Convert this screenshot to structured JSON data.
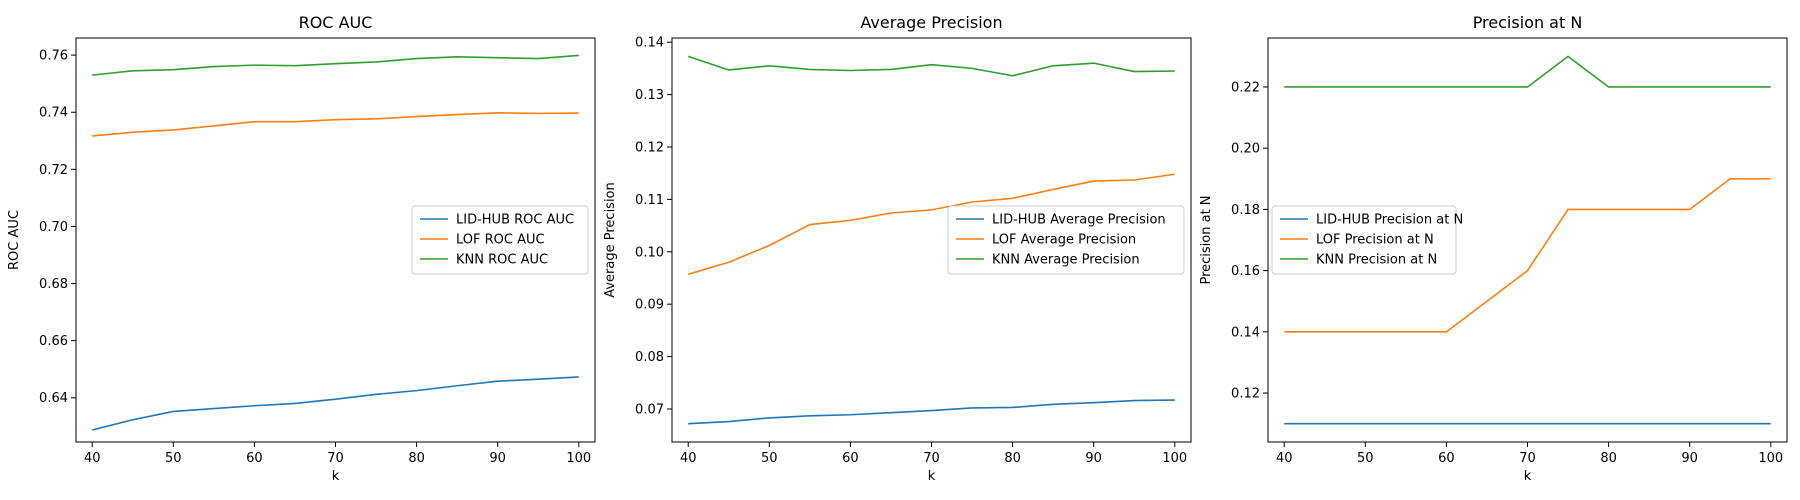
{
  "chart_data": [
    {
      "type": "line",
      "title": "ROC AUC",
      "xlabel": "k",
      "ylabel": "ROC AUC",
      "x": [
        40,
        45,
        50,
        55,
        60,
        65,
        70,
        75,
        80,
        85,
        90,
        95,
        100
      ],
      "xlim": [
        38,
        102
      ],
      "ylim": [
        0.6245,
        0.766
      ],
      "xticks": [
        40,
        50,
        60,
        70,
        80,
        90,
        100
      ],
      "yticks": [
        0.64,
        0.66,
        0.68,
        0.7,
        0.72,
        0.74,
        0.76
      ],
      "ytick_decimals": 2,
      "legend_position": "center-right",
      "grid": false,
      "series": [
        {
          "name": "LID-HUB ROC AUC",
          "color": "#1f77b4",
          "values": [
            0.6287,
            0.6323,
            0.6352,
            0.6362,
            0.6372,
            0.638,
            0.6395,
            0.6412,
            0.6425,
            0.6442,
            0.6458,
            0.6465,
            0.6473
          ]
        },
        {
          "name": "LOF ROC AUC",
          "color": "#ff7f0e",
          "values": [
            0.7317,
            0.733,
            0.7338,
            0.7352,
            0.7367,
            0.7367,
            0.7374,
            0.7377,
            0.7385,
            0.7392,
            0.7398,
            0.7396,
            0.7397
          ]
        },
        {
          "name": "KNN ROC AUC",
          "color": "#2ca02c",
          "values": [
            0.753,
            0.7545,
            0.7549,
            0.756,
            0.7565,
            0.7563,
            0.757,
            0.7576,
            0.7588,
            0.7594,
            0.7591,
            0.7588,
            0.7599
          ]
        }
      ]
    },
    {
      "type": "line",
      "title": "Average Precision",
      "xlabel": "k",
      "ylabel": "Average Precision",
      "x": [
        40,
        45,
        50,
        55,
        60,
        65,
        70,
        75,
        80,
        85,
        90,
        95,
        100
      ],
      "xlim": [
        38,
        102
      ],
      "ylim": [
        0.0637,
        0.1408
      ],
      "xticks": [
        40,
        50,
        60,
        70,
        80,
        90,
        100
      ],
      "yticks": [
        0.07,
        0.08,
        0.09,
        0.1,
        0.11,
        0.12,
        0.13,
        0.14
      ],
      "ytick_decimals": 2,
      "legend_position": "center-right",
      "grid": false,
      "series": [
        {
          "name": "LID-HUB Average Precision",
          "color": "#1f77b4",
          "values": [
            0.0672,
            0.0676,
            0.0683,
            0.0687,
            0.0689,
            0.0693,
            0.0697,
            0.0702,
            0.0703,
            0.0709,
            0.0712,
            0.0716,
            0.0717
          ]
        },
        {
          "name": "LOF Average Precision",
          "color": "#ff7f0e",
          "values": [
            0.0957,
            0.098,
            0.1012,
            0.1052,
            0.106,
            0.1074,
            0.108,
            0.1095,
            0.1102,
            0.1119,
            0.1135,
            0.1137,
            0.1148
          ]
        },
        {
          "name": "KNN Average Precision",
          "color": "#2ca02c",
          "values": [
            0.1373,
            0.1347,
            0.1355,
            0.1348,
            0.1346,
            0.1348,
            0.1357,
            0.135,
            0.1336,
            0.1355,
            0.136,
            0.1344,
            0.1345
          ]
        }
      ]
    },
    {
      "type": "line",
      "title": "Precision at N",
      "xlabel": "k",
      "ylabel": "Precision at N",
      "x": [
        40,
        45,
        50,
        55,
        60,
        65,
        70,
        75,
        80,
        85,
        90,
        95,
        100
      ],
      "xlim": [
        38,
        102
      ],
      "ylim": [
        0.104,
        0.236
      ],
      "xticks": [
        40,
        50,
        60,
        70,
        80,
        90,
        100
      ],
      "yticks": [
        0.12,
        0.14,
        0.16,
        0.18,
        0.2,
        0.22
      ],
      "ytick_decimals": 2,
      "legend_position": "center-left",
      "grid": false,
      "series": [
        {
          "name": "LID-HUB Precision at N",
          "color": "#1f77b4",
          "values": [
            0.11,
            0.11,
            0.11,
            0.11,
            0.11,
            0.11,
            0.11,
            0.11,
            0.11,
            0.11,
            0.11,
            0.11,
            0.11
          ]
        },
        {
          "name": "LOF Precision at N",
          "color": "#ff7f0e",
          "values": [
            0.14,
            0.14,
            0.14,
            0.14,
            0.14,
            0.15,
            0.16,
            0.18,
            0.18,
            0.18,
            0.18,
            0.19,
            0.19
          ]
        },
        {
          "name": "KNN Precision at N",
          "color": "#2ca02c",
          "values": [
            0.22,
            0.22,
            0.22,
            0.22,
            0.22,
            0.22,
            0.22,
            0.23,
            0.22,
            0.22,
            0.22,
            0.22,
            0.22
          ]
        }
      ]
    }
  ]
}
